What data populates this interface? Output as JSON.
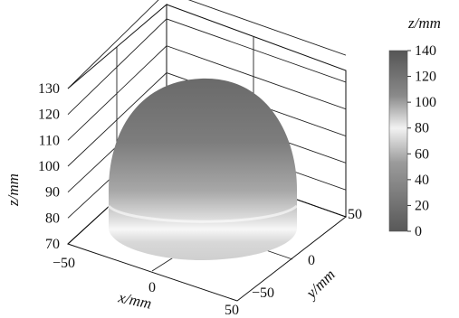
{
  "chart_data": {
    "type": "surface",
    "title": "",
    "xlabel": "x/mm",
    "ylabel": "y/mm",
    "zlabel": "z/mm",
    "x_ticks": [
      "−50",
      "0",
      "50"
    ],
    "y_ticks": [
      "−50",
      "0",
      "50"
    ],
    "z_ticks": [
      "70",
      "80",
      "90",
      "100",
      "110",
      "120",
      "130"
    ],
    "xlim": [
      -50,
      50
    ],
    "ylim": [
      -50,
      50
    ],
    "zlim": [
      70,
      130
    ],
    "grid": true,
    "colorbar": {
      "label": "z/mm",
      "ticks": [
        "140",
        "120",
        "100",
        "80",
        "60",
        "40",
        "20",
        "0"
      ],
      "range": [
        0,
        140
      ]
    },
    "surface": {
      "shape": "dome (cylinder base with ellipsoidal cap)",
      "base_z": 70,
      "cylinder_top_z": 85,
      "apex_z": 130,
      "radius": 50
    }
  }
}
